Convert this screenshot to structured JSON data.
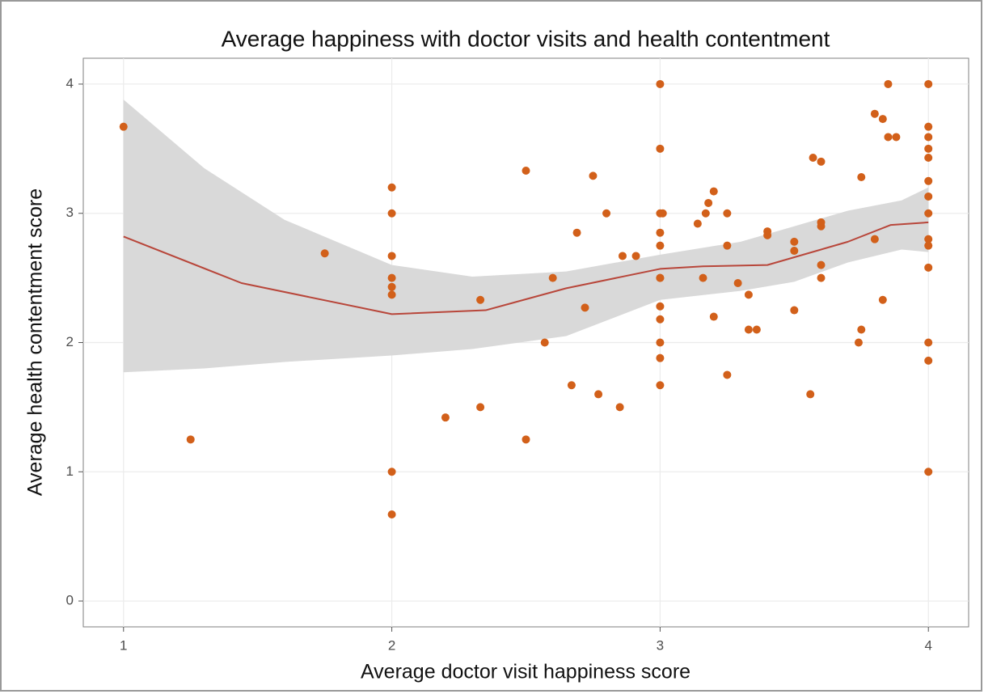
{
  "chart_data": {
    "type": "scatter",
    "title": "Average happiness with doctor visits and health contentment",
    "x_label": "Average doctor visit happiness score",
    "y_label": "Average health contentment score",
    "xlim": [
      0.85,
      4.15
    ],
    "ylim": [
      -0.2,
      4.2
    ],
    "xticks": [
      1,
      2,
      3,
      4
    ],
    "yticks": [
      0,
      1,
      2,
      3,
      4
    ],
    "grid": true,
    "color": "#d2601a",
    "x": [
      1,
      1.25,
      1.75,
      2,
      2,
      2,
      2,
      2,
      2,
      2,
      2,
      2.2,
      2.33,
      2.33,
      2.5,
      2.5,
      2.57,
      2.6,
      2.67,
      2.69,
      2.72,
      2.75,
      2.77,
      2.8,
      2.85,
      2.86,
      2.91,
      3,
      3,
      3,
      3,
      3,
      3,
      3,
      3,
      3,
      3,
      3,
      3,
      3.01,
      3.14,
      3.17,
      3.18,
      3.16,
      3.2,
      3.2,
      3.25,
      3.25,
      3.25,
      3.29,
      3.33,
      3.33,
      3.36,
      3.4,
      3.4,
      3.5,
      3.5,
      3.5,
      3.57,
      3.6,
      3.56,
      3.6,
      3.6,
      3.6,
      3.6,
      3.75,
      3.74,
      3.75,
      3.8,
      3.8,
      3.83,
      3.83,
      3.85,
      3.85,
      3.88,
      4,
      4,
      4,
      4,
      4,
      4,
      4,
      4,
      4,
      4,
      4,
      4,
      4,
      4
    ],
    "values": [
      3.67,
      1.25,
      2.69,
      3.2,
      3.0,
      2.67,
      2.5,
      2.43,
      2.37,
      1.0,
      0.67,
      1.42,
      2.33,
      1.5,
      3.33,
      1.25,
      2.0,
      2.5,
      1.67,
      2.85,
      2.27,
      3.29,
      1.6,
      3.0,
      1.5,
      2.67,
      2.67,
      4.0,
      3.5,
      3.0,
      2.85,
      2.75,
      2.5,
      2.5,
      2.28,
      2.18,
      2.0,
      1.88,
      1.67,
      3.0,
      2.92,
      3.0,
      3.08,
      2.5,
      3.17,
      2.2,
      3.0,
      2.75,
      1.75,
      2.46,
      2.37,
      2.1,
      2.1,
      2.83,
      2.86,
      2.78,
      2.71,
      2.25,
      3.43,
      3.4,
      1.6,
      2.93,
      2.9,
      2.6,
      2.5,
      3.28,
      2.0,
      2.1,
      2.8,
      3.77,
      3.73,
      2.33,
      3.59,
      4.0,
      3.59,
      4.0,
      3.67,
      3.59,
      3.5,
      3.43,
      3.25,
      3.13,
      3.0,
      2.8,
      2.75,
      2.58,
      2.0,
      1.86,
      1.0
    ],
    "smooth": {
      "color": "#b8463a",
      "x": [
        1,
        1.44,
        2,
        2.35,
        2.65,
        3,
        3.16,
        3.4,
        3.7,
        3.86,
        4
      ],
      "values": [
        2.82,
        2.46,
        2.22,
        2.25,
        2.42,
        2.57,
        2.59,
        2.6,
        2.78,
        2.91,
        2.93
      ]
    },
    "band": {
      "color": "#d9d9d9",
      "x": [
        1,
        1.3,
        1.6,
        2,
        2.3,
        2.65,
        3,
        3.3,
        3.5,
        3.7,
        3.9,
        4
      ],
      "upper": [
        3.88,
        3.35,
        2.95,
        2.6,
        2.51,
        2.55,
        2.68,
        2.78,
        2.9,
        3.02,
        3.1,
        3.2
      ],
      "lower": [
        1.77,
        1.8,
        1.85,
        1.9,
        1.95,
        2.05,
        2.33,
        2.4,
        2.47,
        2.62,
        2.72,
        2.7
      ]
    }
  }
}
